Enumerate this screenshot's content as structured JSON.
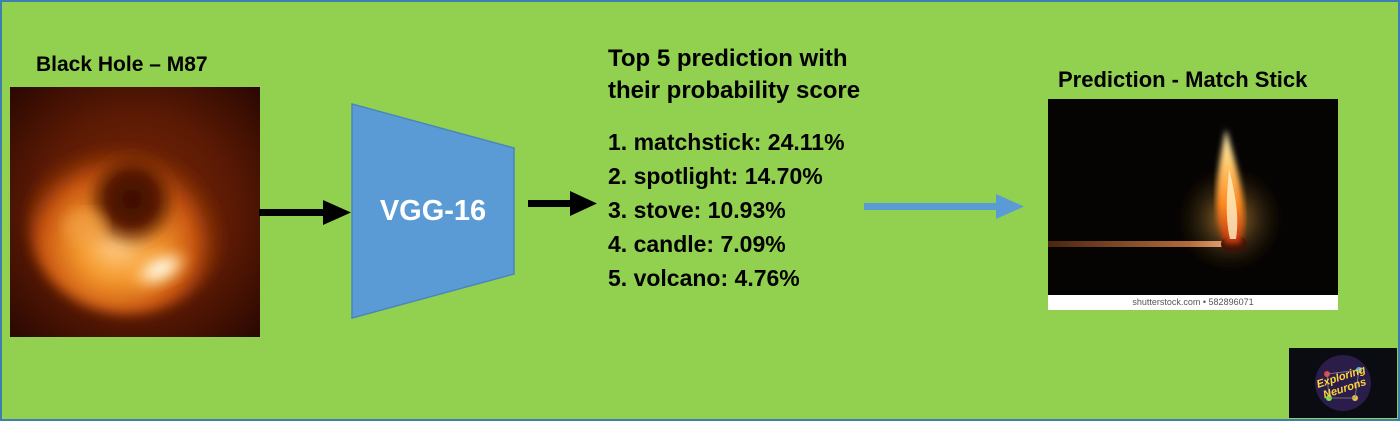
{
  "input": {
    "title": "Black Hole – M87"
  },
  "model": {
    "label": "VGG-16"
  },
  "predictions": {
    "heading_line1": "Top 5 prediction with",
    "heading_line2": "their probability score",
    "items": [
      "1. matchstick: 24.11%",
      "2. spotlight: 14.70%",
      "3. stove: 10.93%",
      "4. candle: 7.09%",
      "5. volcano: 4.76%"
    ]
  },
  "output": {
    "title": "Prediction - Match Stick",
    "watermark": "shutterstock.com • 582896071"
  },
  "logo": {
    "line1": "Exploring",
    "line2": "Neurons"
  },
  "colors": {
    "background": "#92d050",
    "model_fill": "#5b9bd5",
    "arrow_black": "#000000",
    "arrow_blue": "#5b9bd5"
  }
}
